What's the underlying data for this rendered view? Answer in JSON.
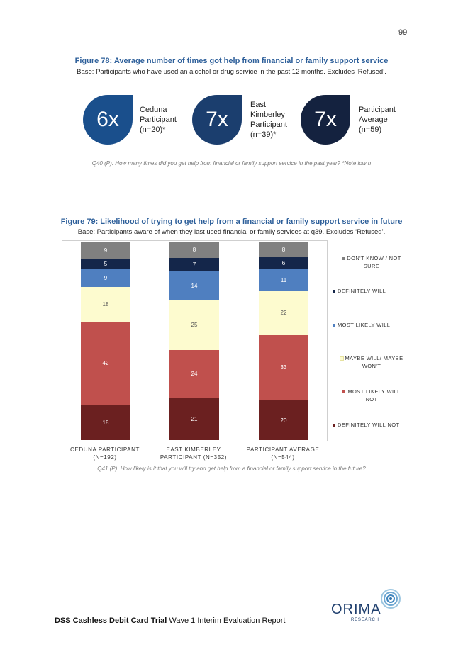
{
  "page_number": "99",
  "figure78": {
    "title": "Figure 78: Average number of times got help from financial or family support service",
    "base": "Base: Participants who have used an alcohol or drug service in the past 12 months. Excludes ‘Refused’.",
    "stats": [
      {
        "value": "6x",
        "label_lines": [
          "Ceduna",
          "Participant",
          "(n=20)*"
        ],
        "color": "#1a4f8c"
      },
      {
        "value": "7x",
        "label_lines": [
          "East",
          "Kimberley",
          "Participant",
          "(n=39)*"
        ],
        "color": "#1b3e6e"
      },
      {
        "value": "7x",
        "label_lines": [
          "Participant",
          "Average",
          "(n=59)"
        ],
        "color": "#14223f"
      }
    ],
    "note": "Q40 (P). How many times did you get help from financial or family support service in the past year? *Note low n"
  },
  "figure79": {
    "title": "Figure 79: Likelihood of trying to get help from a financial or family support service in future",
    "base": "Base: Participants aware of when they last used financial or family services at q39. Excludes ‘Refused’.",
    "note": "Q41 (P). How likely is it that you will try and get help from a financial or family support service in the future?"
  },
  "chart_data": {
    "type": "bar",
    "stacked": true,
    "categories": [
      "CEDUNA PARTICIPANT (N=192)",
      "EAST KIMBERLEY PARTICIPANT (N=352)",
      "PARTICIPANT AVERAGE (N=544)"
    ],
    "category_label_lines": [
      [
        "CEDUNA PARTICIPANT",
        "(N=192)"
      ],
      [
        "EAST KIMBERLEY",
        "PARTICIPANT (N=352)"
      ],
      [
        "PARTICIPANT AVERAGE",
        "(N=544)"
      ]
    ],
    "series": [
      {
        "name": "DEFINITELY WILL NOT",
        "values": [
          18,
          21,
          20
        ],
        "color": "#6b2020",
        "label_color": "#ffffff"
      },
      {
        "name": "MOST LIKELY WILL NOT",
        "values": [
          42,
          24,
          33
        ],
        "color": "#c0504d",
        "label_color": "#ffffff"
      },
      {
        "name": "MAYBE WILL/ MAYBE WON'T",
        "values": [
          18,
          25,
          22
        ],
        "color": "#fdfbcf",
        "label_color": "#555555"
      },
      {
        "name": "MOST LIKELY WILL",
        "values": [
          9,
          14,
          11
        ],
        "color": "#4f7fc0",
        "label_color": "#ffffff"
      },
      {
        "name": "DEFINITELY WILL",
        "values": [
          5,
          7,
          6
        ],
        "color": "#14264a",
        "label_color": "#ffffff"
      },
      {
        "name": "DON'T KNOW / NOT SURE",
        "values": [
          9,
          8,
          8
        ],
        "color": "#808080",
        "label_color": "#ffffff"
      }
    ],
    "legend_order": [
      {
        "name_lines": [
          "DON'T KNOW / NOT",
          "SURE"
        ],
        "color": "#808080"
      },
      {
        "name_lines": [
          "DEFINITELY WILL"
        ],
        "color": "#14264a"
      },
      {
        "name_lines": [
          "MOST LIKELY WILL"
        ],
        "color": "#4f7fc0"
      },
      {
        "name_lines": [
          "MAYBE WILL/ MAYBE",
          "WON'T"
        ],
        "color": "#fdfbcf"
      },
      {
        "name_lines": [
          "MOST LIKELY WILL",
          "NOT"
        ],
        "color": "#c0504d"
      },
      {
        "name_lines": [
          "DEFINITELY WILL NOT"
        ],
        "color": "#6b2020"
      }
    ],
    "legend_placement": "right",
    "grid": false
  },
  "footer": {
    "bold": "DSS Cashless Debit Card Trial",
    "rest": " Wave 1 Interim Evaluation Report",
    "logo_text": "ORIMA",
    "logo_subtext": "RESEARCH"
  }
}
